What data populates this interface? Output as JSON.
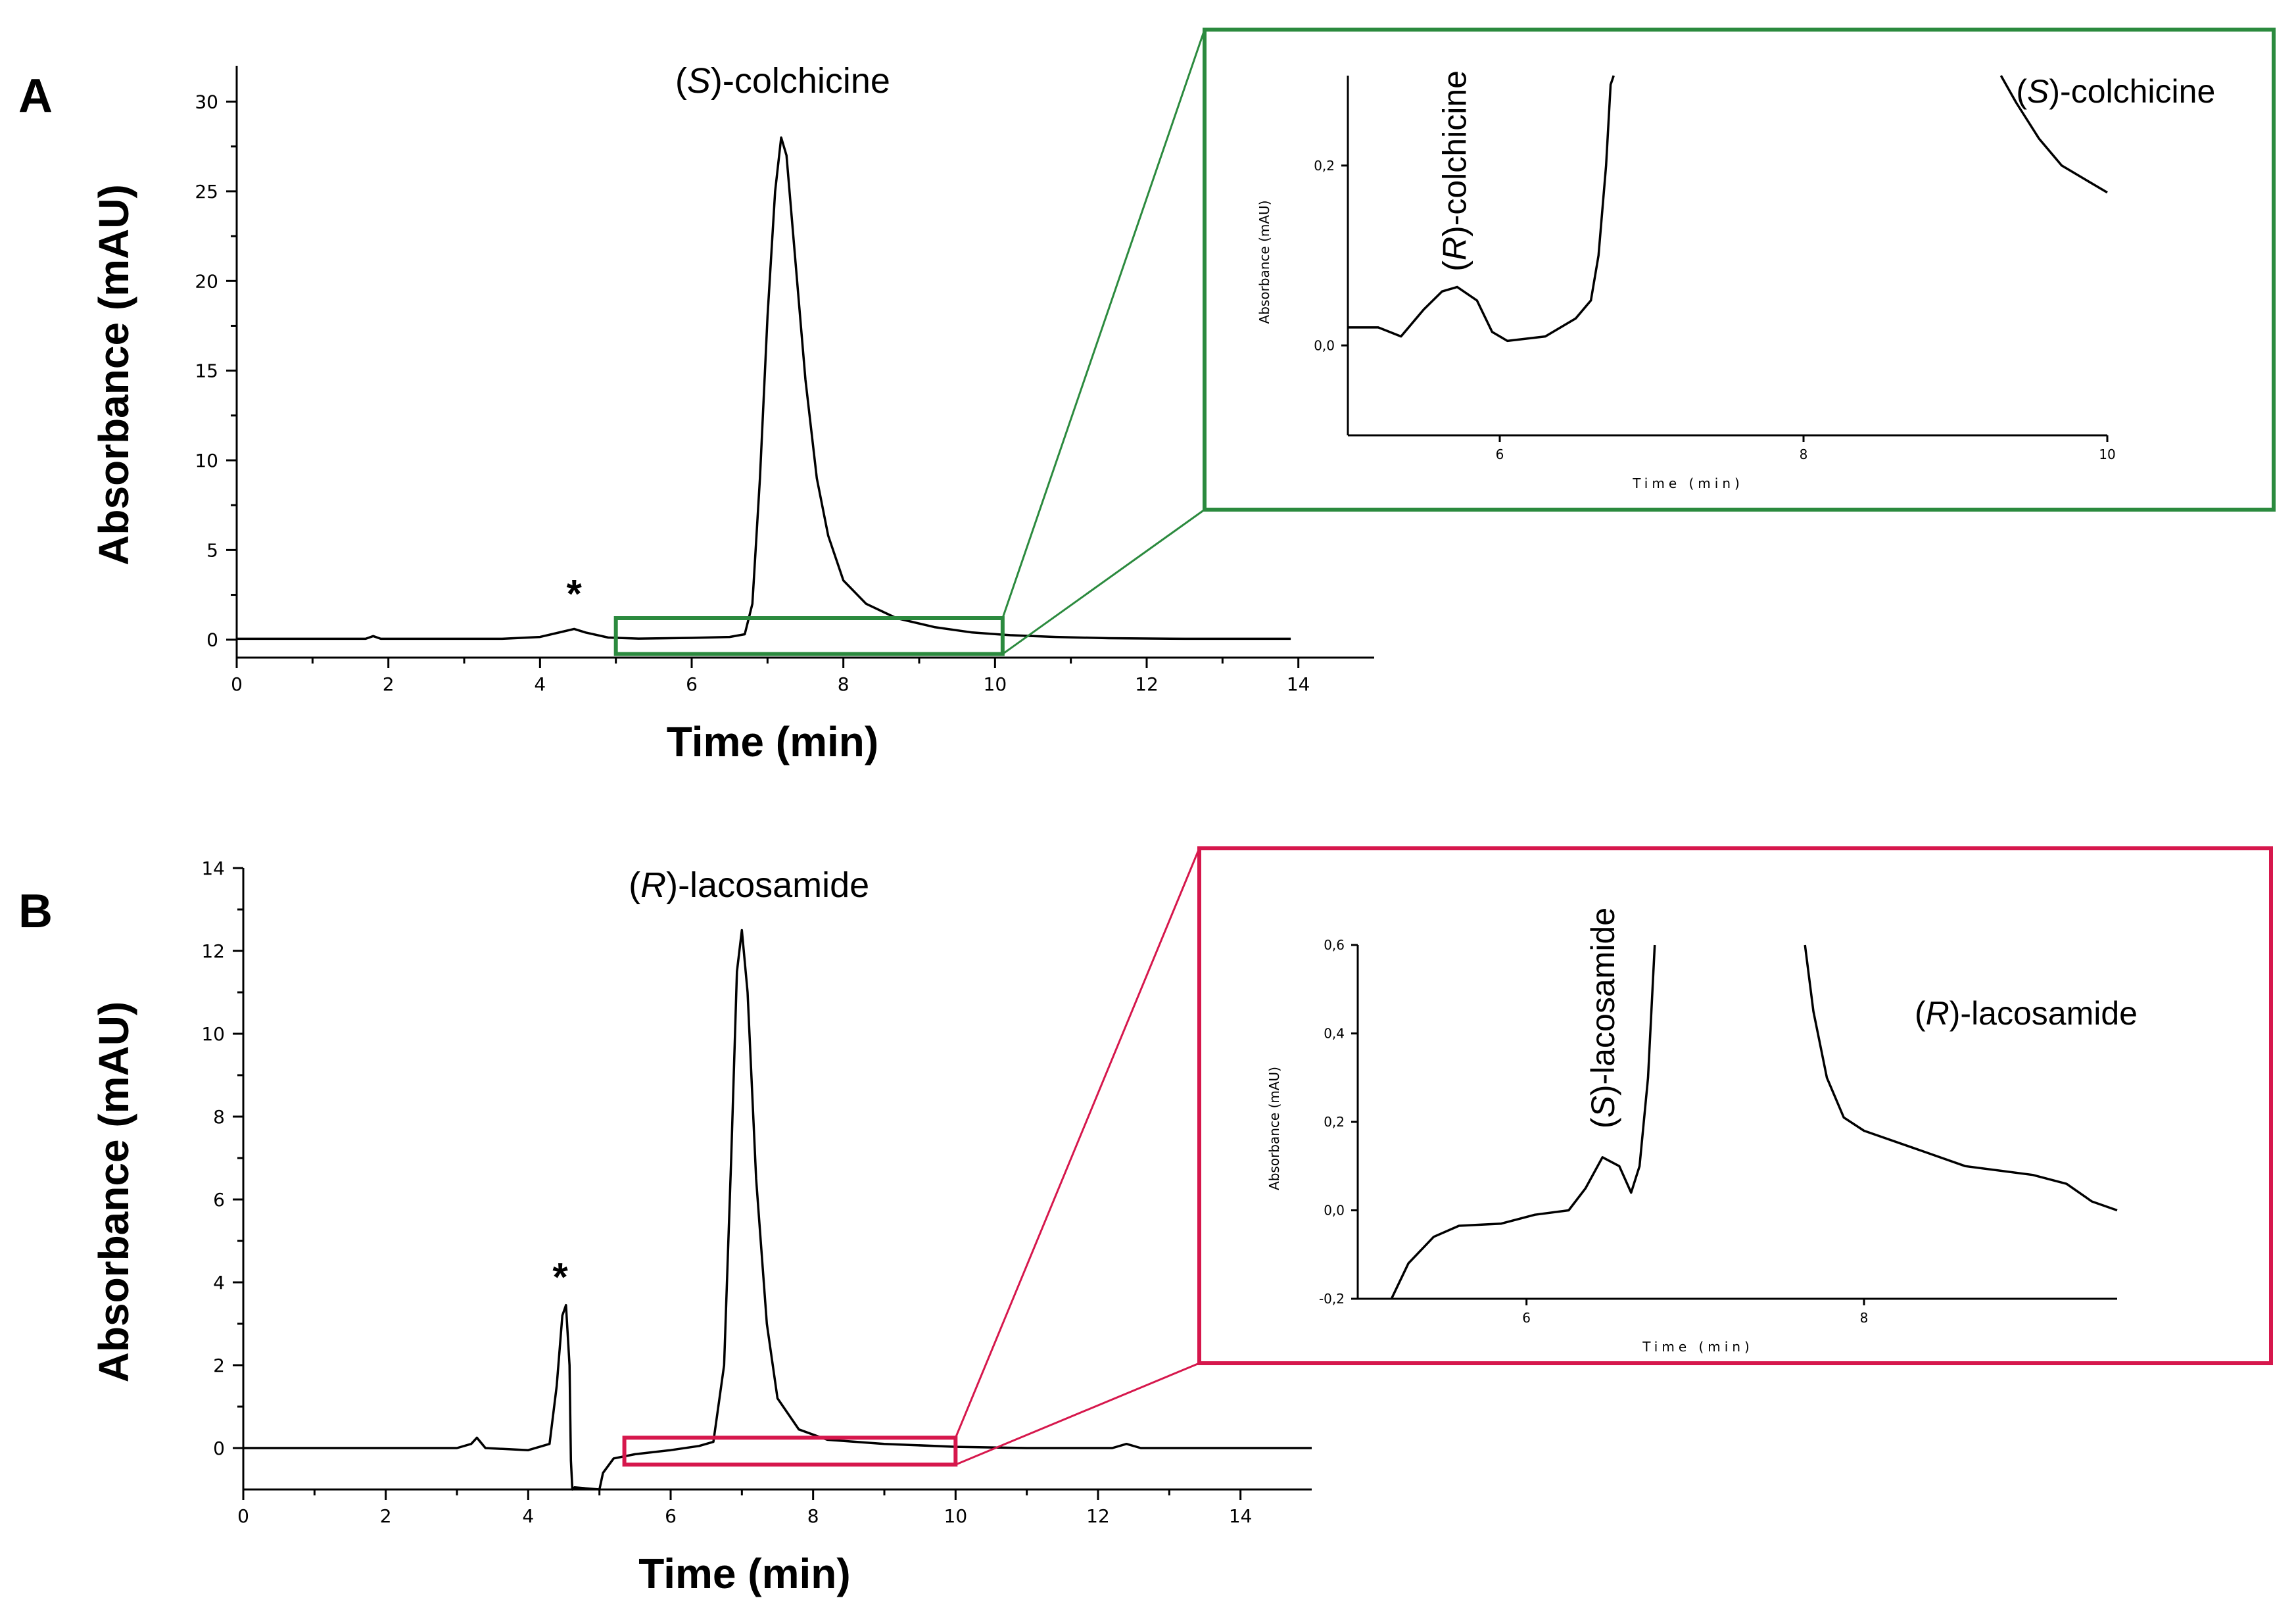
{
  "colors": {
    "panelA": "#2b8a3e",
    "panelB": "#d6174c",
    "trace": "#000000"
  },
  "chart_data": [
    {
      "id": "A",
      "type": "line",
      "panel_label": "A",
      "xlabel": "Time (min)",
      "ylabel": "Absorbance (mAU)",
      "xlim": [
        0,
        15
      ],
      "ylim": [
        -1,
        32
      ],
      "xticks": [
        0,
        2,
        4,
        6,
        8,
        10,
        12,
        14
      ],
      "yticks": [
        0,
        5,
        10,
        15,
        20,
        25,
        30
      ],
      "xticklabels": [
        "0",
        "2",
        "4",
        "6",
        "8",
        "10",
        "12",
        "14"
      ],
      "yticklabels": [
        "0",
        "5",
        "10",
        "15",
        "20",
        "25",
        "30"
      ],
      "annotations": [
        {
          "text": "(S)-colchicine",
          "ital": "S",
          "x": 7.2,
          "y": 30.5
        },
        {
          "text": "*",
          "x": 4.45,
          "y": 1.8,
          "star": true
        }
      ],
      "series": [
        {
          "name": "trace",
          "points": [
            [
              0,
              0.05
            ],
            [
              1.7,
              0.05
            ],
            [
              1.8,
              0.2
            ],
            [
              1.9,
              0.05
            ],
            [
              3.5,
              0.05
            ],
            [
              4.0,
              0.15
            ],
            [
              4.3,
              0.45
            ],
            [
              4.45,
              0.6
            ],
            [
              4.6,
              0.4
            ],
            [
              4.9,
              0.12
            ],
            [
              5.3,
              0.06
            ],
            [
              6.0,
              0.1
            ],
            [
              6.5,
              0.15
            ],
            [
              6.7,
              0.3
            ],
            [
              6.8,
              2.0
            ],
            [
              6.9,
              9.0
            ],
            [
              7.0,
              18.0
            ],
            [
              7.1,
              25.0
            ],
            [
              7.18,
              28.0
            ],
            [
              7.25,
              27.0
            ],
            [
              7.35,
              22.0
            ],
            [
              7.5,
              14.5
            ],
            [
              7.65,
              9.0
            ],
            [
              7.8,
              5.8
            ],
            [
              8.0,
              3.3
            ],
            [
              8.3,
              2.0
            ],
            [
              8.7,
              1.2
            ],
            [
              9.2,
              0.7
            ],
            [
              9.7,
              0.4
            ],
            [
              10.2,
              0.25
            ],
            [
              10.8,
              0.15
            ],
            [
              11.5,
              0.08
            ],
            [
              12.5,
              0.05
            ],
            [
              13.9,
              0.05
            ]
          ]
        }
      ],
      "zoom_region": {
        "x": [
          5,
          10.1
        ],
        "y": [
          -0.8,
          1.2
        ]
      },
      "inset": {
        "xlabel": "Time (min)",
        "ylabel": "Absorbance (mAU)",
        "xlim": [
          5.0,
          10.0
        ],
        "ylim": [
          -0.1,
          0.3
        ],
        "xticks": [
          6,
          8,
          10
        ],
        "yticks": [
          0.0,
          0.2
        ],
        "xticklabels": [
          "6",
          "8",
          "10"
        ],
        "yticklabels": [
          "0,0",
          "0,2"
        ],
        "annotations": [
          {
            "text": "(R)-colchicine",
            "ital": "R",
            "x": 5.7,
            "y": 0.075,
            "rotated": true
          },
          {
            "text": "(S)-colchicine",
            "ital": "S",
            "x": 9.4,
            "y": 0.27
          }
        ],
        "series": [
          {
            "name": "segment-1",
            "points": [
              [
                5.0,
                0.02
              ],
              [
                5.2,
                0.02
              ],
              [
                5.35,
                0.01
              ],
              [
                5.5,
                0.04
              ],
              [
                5.62,
                0.06
              ],
              [
                5.72,
                0.065
              ],
              [
                5.85,
                0.05
              ],
              [
                5.95,
                0.015
              ],
              [
                6.05,
                0.005
              ],
              [
                6.3,
                0.01
              ],
              [
                6.5,
                0.03
              ],
              [
                6.6,
                0.05
              ],
              [
                6.65,
                0.1
              ],
              [
                6.7,
                0.2
              ],
              [
                6.73,
                0.29
              ],
              [
                6.75,
                0.3
              ]
            ]
          },
          {
            "name": "segment-2",
            "points": [
              [
                9.3,
                0.3
              ],
              [
                9.4,
                0.27
              ],
              [
                9.55,
                0.23
              ],
              [
                9.7,
                0.2
              ],
              [
                9.85,
                0.185
              ],
              [
                10.0,
                0.17
              ]
            ]
          }
        ]
      }
    },
    {
      "id": "B",
      "type": "line",
      "panel_label": "B",
      "xlabel": "Time (min)",
      "ylabel": "Absorbance (mAU)",
      "xlim": [
        0,
        15
      ],
      "ylim": [
        -1,
        14
      ],
      "xticks": [
        0,
        2,
        4,
        6,
        8,
        10,
        12,
        14
      ],
      "yticks": [
        0,
        2,
        4,
        6,
        8,
        10,
        12,
        14
      ],
      "xticklabels": [
        "0",
        "2",
        "4",
        "6",
        "8",
        "10",
        "12",
        "14"
      ],
      "yticklabels": [
        "0",
        "2",
        "4",
        "6",
        "8",
        "10",
        "12",
        "14"
      ],
      "annotations": [
        {
          "text": "(R)-lacosamide",
          "ital": "R",
          "x": 7.1,
          "y": 13.3
        },
        {
          "text": "*",
          "x": 4.45,
          "y": 3.8,
          "star": true
        }
      ],
      "series": [
        {
          "name": "trace",
          "points": [
            [
              0,
              0.0
            ],
            [
              3.0,
              0.0
            ],
            [
              3.2,
              0.1
            ],
            [
              3.28,
              0.25
            ],
            [
              3.4,
              0.0
            ],
            [
              4.0,
              -0.05
            ],
            [
              4.3,
              0.1
            ],
            [
              4.4,
              1.5
            ],
            [
              4.48,
              3.2
            ],
            [
              4.53,
              3.45
            ],
            [
              4.58,
              2.0
            ],
            [
              4.6,
              -0.3
            ],
            [
              4.62,
              -1.0
            ],
            [
              4.65,
              -0.95
            ],
            [
              5.0,
              -1.0
            ],
            [
              5.05,
              -0.6
            ],
            [
              5.2,
              -0.25
            ],
            [
              5.5,
              -0.15
            ],
            [
              6.0,
              -0.05
            ],
            [
              6.4,
              0.05
            ],
            [
              6.6,
              0.15
            ],
            [
              6.75,
              2.0
            ],
            [
              6.85,
              7.0
            ],
            [
              6.93,
              11.5
            ],
            [
              7.0,
              12.5
            ],
            [
              7.08,
              11.0
            ],
            [
              7.2,
              6.5
            ],
            [
              7.35,
              3.0
            ],
            [
              7.5,
              1.2
            ],
            [
              7.8,
              0.45
            ],
            [
              8.2,
              0.2
            ],
            [
              9.0,
              0.1
            ],
            [
              10.0,
              0.03
            ],
            [
              11.0,
              0.0
            ],
            [
              12.2,
              0.0
            ],
            [
              12.4,
              0.1
            ],
            [
              12.6,
              0.0
            ],
            [
              15.0,
              0.0
            ]
          ]
        }
      ],
      "zoom_region": {
        "x": [
          5.35,
          10.0
        ],
        "y": [
          -0.4,
          0.25
        ]
      },
      "inset": {
        "xlabel": "Time (min)",
        "ylabel": "Absorbance (mAU)",
        "xlim": [
          5.0,
          9.5
        ],
        "ylim": [
          -0.2,
          0.6
        ],
        "xticks": [
          6,
          8
        ],
        "yticks": [
          -0.2,
          0.0,
          0.2,
          0.4,
          0.6
        ],
        "xticklabels": [
          "6",
          "8"
        ],
        "yticklabels": [
          "-0,2",
          "0,0",
          "0,2",
          "0,4",
          "0,6"
        ],
        "annotations": [
          {
            "text": "(S)-lacosamide",
            "ital": "S",
            "x": 6.45,
            "y": 0.17,
            "rotated": true
          },
          {
            "text": "(R)-lacosamide",
            "ital": "R",
            "x": 8.3,
            "y": 0.42
          }
        ],
        "series": [
          {
            "name": "segment-1",
            "points": [
              [
                5.2,
                -0.2
              ],
              [
                5.3,
                -0.12
              ],
              [
                5.45,
                -0.06
              ],
              [
                5.6,
                -0.035
              ],
              [
                5.85,
                -0.03
              ],
              [
                6.05,
                -0.01
              ],
              [
                6.25,
                0.0
              ],
              [
                6.35,
                0.05
              ],
              [
                6.45,
                0.12
              ],
              [
                6.55,
                0.1
              ],
              [
                6.62,
                0.04
              ],
              [
                6.67,
                0.1
              ],
              [
                6.72,
                0.3
              ],
              [
                6.76,
                0.6
              ]
            ]
          },
          {
            "name": "segment-2",
            "points": [
              [
                7.65,
                0.6
              ],
              [
                7.7,
                0.45
              ],
              [
                7.78,
                0.3
              ],
              [
                7.88,
                0.21
              ],
              [
                8.0,
                0.18
              ],
              [
                8.3,
                0.14
              ],
              [
                8.6,
                0.1
              ],
              [
                9.0,
                0.08
              ],
              [
                9.2,
                0.06
              ],
              [
                9.35,
                0.02
              ],
              [
                9.5,
                0.0
              ]
            ]
          }
        ]
      }
    }
  ]
}
